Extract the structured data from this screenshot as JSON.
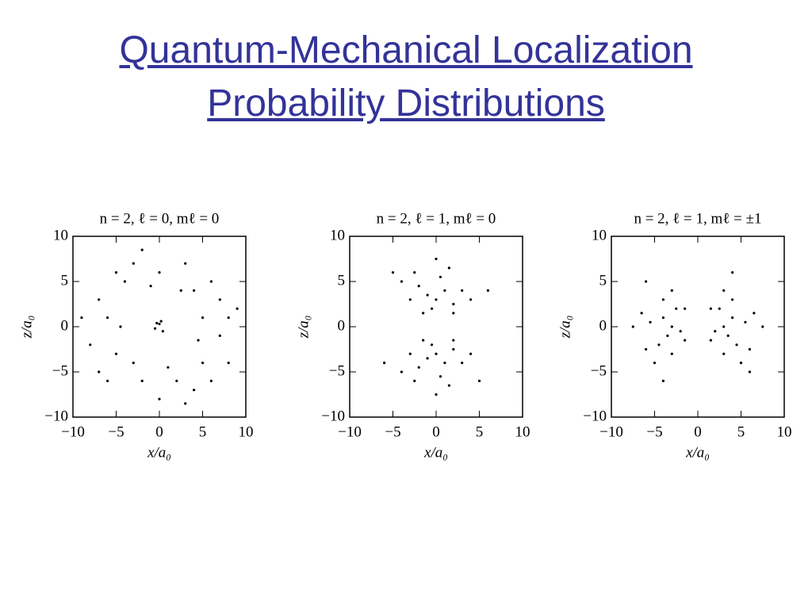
{
  "slide": {
    "title": [
      "Quantum-Mechanical Localization",
      "Probability Distributions"
    ]
  },
  "chart_data": [
    {
      "type": "scatter",
      "title": "n = 2, ℓ = 0, mℓ = 0",
      "xlabel": "x/a₀",
      "ylabel": "z/a₀",
      "color": "#000000",
      "xlim": [
        -10,
        10
      ],
      "ylim": [
        -10,
        10
      ],
      "xticks": [
        {
          "value": -10,
          "label": "−10"
        },
        {
          "value": -5,
          "label": "−5"
        },
        0,
        5,
        10
      ],
      "yticks": [
        {
          "value": -10,
          "label": "−10"
        },
        {
          "value": -5,
          "label": "−5"
        },
        0,
        5,
        10
      ],
      "x": [
        0,
        -0.5,
        0.4,
        0.2,
        -0.3,
        5,
        4,
        0,
        -4,
        -6,
        -5,
        -2,
        2,
        5,
        7,
        7,
        3,
        -3,
        -7,
        -8,
        -6,
        0,
        6,
        8,
        -1,
        4.5,
        -4.5,
        1,
        2.5,
        -3,
        6,
        -7,
        8,
        -2,
        3,
        9,
        -9,
        4,
        -5
      ],
      "y": [
        0.3,
        -0.2,
        -0.5,
        0.6,
        0.4,
        1,
        4,
        6,
        5,
        1,
        -3,
        -6,
        -6,
        -4,
        -1,
        3,
        7,
        7,
        3,
        -2,
        -6,
        -8,
        -6,
        1,
        4.5,
        -1.5,
        0,
        -4.5,
        4,
        -4,
        5,
        -5,
        -4,
        8.5,
        -8.5,
        2,
        1,
        -7,
        6
      ]
    },
    {
      "type": "scatter",
      "title": "n = 2, ℓ = 1, mℓ = 0",
      "xlabel": "x/a₀",
      "ylabel": "z/a₀",
      "color": "#000000",
      "xlim": [
        -10,
        10
      ],
      "ylim": [
        -10,
        10
      ],
      "xticks": [
        {
          "value": -10,
          "label": "−10"
        },
        {
          "value": -5,
          "label": "−5"
        },
        0,
        5,
        10
      ],
      "yticks": [
        {
          "value": -10,
          "label": "−10"
        },
        {
          "value": -5,
          "label": "−5"
        },
        0,
        5,
        10
      ],
      "x": [
        0,
        1,
        -1,
        2,
        -2,
        0.5,
        -0.5,
        3,
        -3,
        1.5,
        -1.5,
        0,
        4,
        -4,
        2,
        -2.5,
        0,
        1,
        -1,
        2,
        -2,
        0.5,
        -0.5,
        3,
        -3,
        1.5,
        -1.5,
        0,
        4,
        -4,
        2,
        -2.5,
        5,
        -5,
        6,
        -6
      ],
      "y": [
        3,
        4,
        3.5,
        2.5,
        4.5,
        5.5,
        2,
        4,
        3,
        6.5,
        1.5,
        7.5,
        3,
        5,
        1.5,
        6,
        -3,
        -4,
        -3.5,
        -2.5,
        -4.5,
        -5.5,
        -2,
        -4,
        -3,
        -6.5,
        -1.5,
        -7.5,
        -3,
        -5,
        -1.5,
        -6,
        -6,
        6,
        4,
        -4
      ]
    },
    {
      "type": "scatter",
      "title": "n = 2, ℓ = 1, mℓ = ±1",
      "xlabel": "x/a₀",
      "ylabel": "z/a₀",
      "color": "#000000",
      "xlim": [
        -10,
        10
      ],
      "ylim": [
        -10,
        10
      ],
      "xticks": [
        {
          "value": -10,
          "label": "−10"
        },
        {
          "value": -5,
          "label": "−5"
        },
        0,
        5,
        10
      ],
      "yticks": [
        {
          "value": -10,
          "label": "−10"
        },
        {
          "value": -5,
          "label": "−5"
        },
        0,
        5,
        10
      ],
      "x": [
        3,
        4,
        3.5,
        2.5,
        4.5,
        5.5,
        2,
        4,
        3,
        6.5,
        1.5,
        7.5,
        3,
        5,
        1.5,
        6,
        -3,
        -4,
        -3.5,
        -2.5,
        -4.5,
        -5.5,
        -2,
        -4,
        -3,
        -6.5,
        -1.5,
        -7.5,
        -3,
        -5,
        -1.5,
        -6,
        -6,
        6,
        4,
        -4
      ],
      "y": [
        0,
        1,
        -1,
        2,
        -2,
        0.5,
        -0.5,
        3,
        -3,
        1.5,
        -1.5,
        0,
        4,
        -4,
        2,
        -2.5,
        0,
        1,
        -1,
        2,
        -2,
        0.5,
        -0.5,
        3,
        -3,
        1.5,
        -1.5,
        0,
        4,
        -4,
        2,
        -2.5,
        5,
        -5,
        6,
        -6
      ]
    }
  ]
}
